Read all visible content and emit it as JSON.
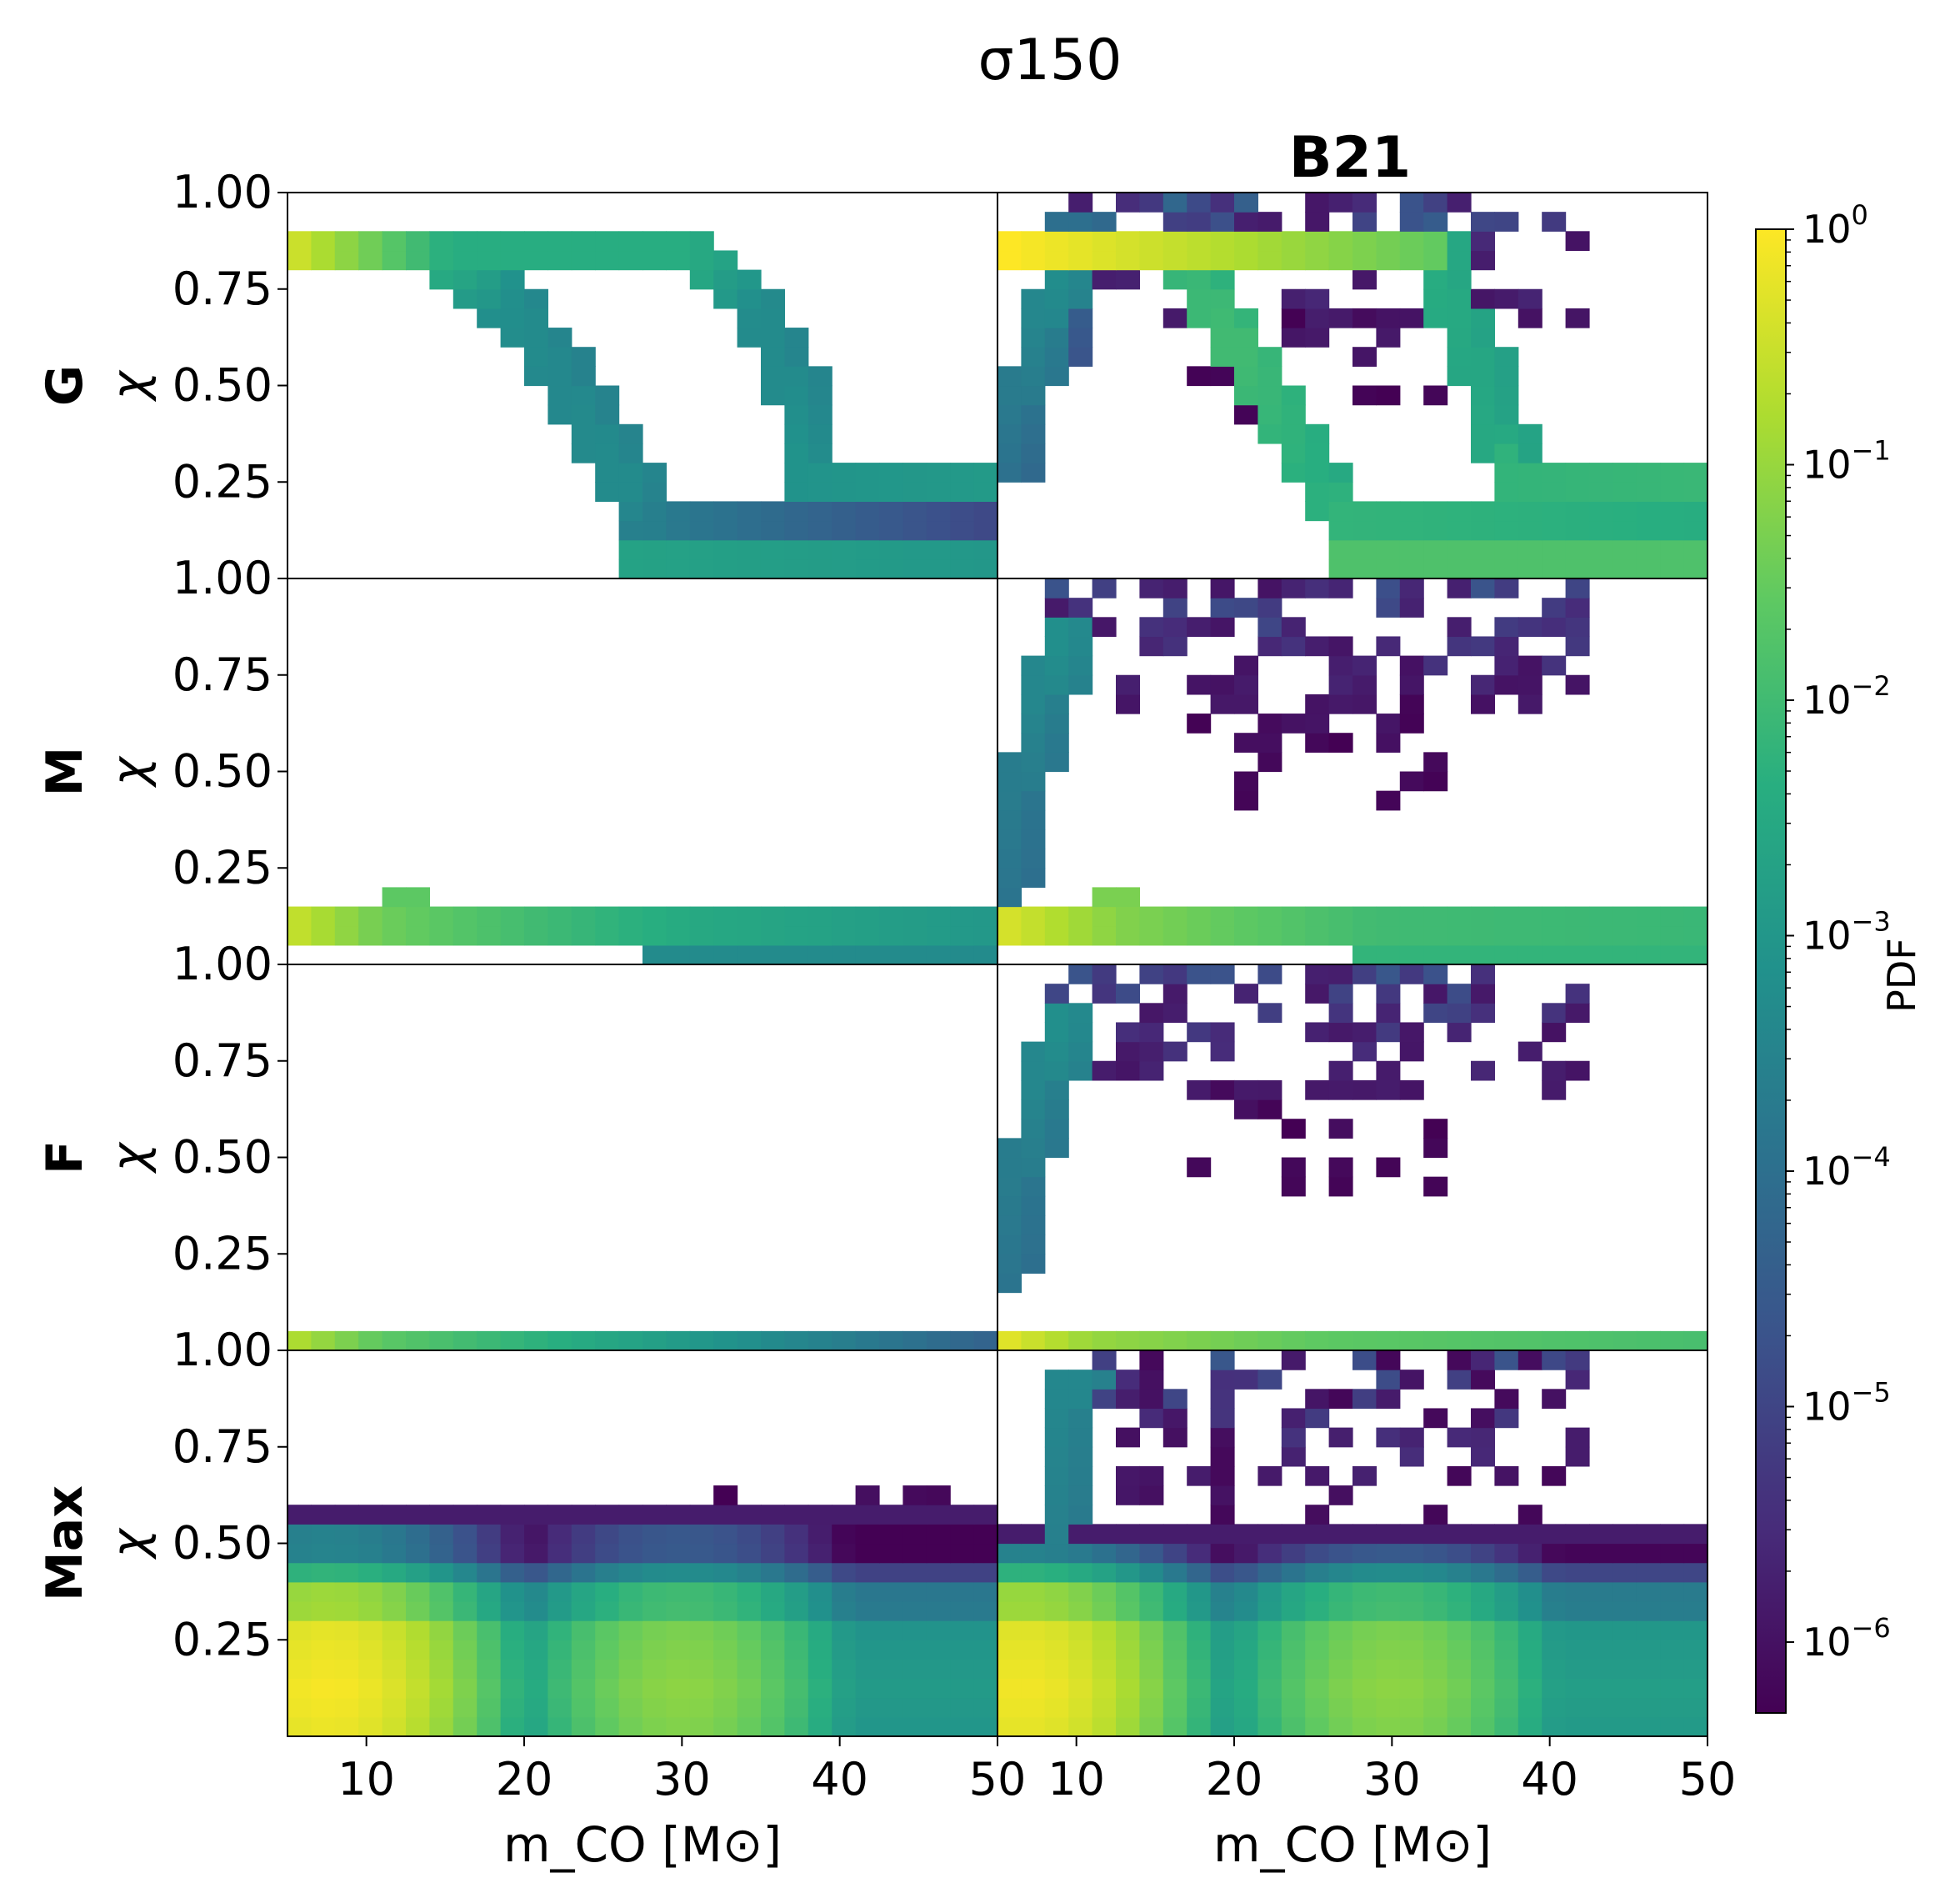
{
  "figure": {
    "title": "σ150",
    "column_titles": [
      "",
      "B21"
    ]
  },
  "colorbar": {
    "label": "PDF",
    "scale": "log",
    "range": [
      5e-07,
      1
    ],
    "ticks": [
      {
        "value": 1,
        "exp": "0"
      },
      {
        "value": 0.1,
        "exp": "−1"
      },
      {
        "value": 0.01,
        "exp": "−2"
      },
      {
        "value": 0.001,
        "exp": "−3"
      },
      {
        "value": 0.0001,
        "exp": "−4"
      },
      {
        "value": 1e-05,
        "exp": "−5"
      },
      {
        "value": 1e-06,
        "exp": "−6"
      }
    ]
  },
  "chart_data": {
    "type": "heatmap",
    "title": "σ150",
    "xlabel": "m_CO [M⊙]",
    "ylabel": "χ",
    "x_range": [
      5,
      50
    ],
    "y_range": [
      0,
      1
    ],
    "x_ticks": [
      "10",
      "20",
      "30",
      "40",
      "50"
    ],
    "y_ticks": [
      "0.25",
      "0.50",
      "0.75",
      "1.00"
    ],
    "bins": {
      "x": 30,
      "y": 20,
      "x_width": 1.5,
      "y_width": 0.05
    },
    "rows": [
      "G",
      "M",
      "F",
      "Max"
    ],
    "columns": [
      "",
      "B21"
    ],
    "value_scale": "log10 PDF",
    "panels": [
      {
        "row": "G",
        "col": "",
        "tracks": [
          {
            "pts": [
              [
                5,
                0.85
              ],
              [
                14,
                0.85
              ],
              [
                18,
                0.73
              ],
              [
                22,
                0.54
              ],
              [
                26,
                0.27
              ],
              [
                28,
                0.13
              ],
              [
                50,
                0.13
              ]
            ],
            "width": 0.05,
            "logv": [
              -0.5,
              -2.3,
              -3.2,
              -3.4,
              -3.3,
              -3.7,
              -5.0
            ]
          },
          {
            "pts": [
              [
                14,
                0.85
              ],
              [
                30,
                0.85
              ],
              [
                34,
                0.72
              ],
              [
                37,
                0.48
              ],
              [
                38,
                0.27
              ],
              [
                50,
                0.27
              ]
            ],
            "width": 0.05,
            "logv": [
              -2.4,
              -2.4,
              -3.3,
              -3.3,
              -3.1,
              -2.9
            ]
          },
          {
            "pts": [
              [
                27,
                0.03
              ],
              [
                50,
                0.03
              ]
            ],
            "width": 0.05,
            "logv": [
              -2.7,
              -3.0
            ]
          }
        ],
        "blobs": [],
        "mass": null
      },
      {
        "row": "G",
        "col": "B21",
        "tracks": [
          {
            "pts": [
              [
                5,
                0.85
              ],
              [
                20,
                0.85
              ],
              [
                33,
                0.85
              ]
            ],
            "width": 0.05,
            "logv": [
              0.0,
              -0.8,
              -1.6
            ]
          },
          {
            "pts": [
              [
                5,
                0.3
              ],
              [
                7,
                0.6
              ],
              [
                9,
                0.85
              ]
            ],
            "width": 0.05,
            "logv": [
              -4.0,
              -3.6,
              -3.2
            ]
          },
          {
            "pts": [
              [
                8,
                0.6
              ],
              [
                9.5,
                0.9
              ]
            ],
            "width": 0.05,
            "logv": [
              -4.5,
              -4.0
            ]
          },
          {
            "pts": [
              [
                16,
                0.85
              ],
              [
                20,
                0.6
              ],
              [
                25,
                0.25
              ],
              [
                27,
                0.13
              ],
              [
                50,
                0.13
              ]
            ],
            "width": 0.05,
            "logv": [
              -2.2,
              -2.0,
              -2.4,
              -2.2,
              -2.4
            ]
          },
          {
            "pts": [
              [
                32,
                0.85
              ],
              [
                35,
                0.55
              ],
              [
                37,
                0.3
              ],
              [
                38,
                0.27
              ],
              [
                50,
                0.27
              ]
            ],
            "width": 0.05,
            "logv": [
              -2.4,
              -2.6,
              -2.5,
              -2.2,
              -2.1
            ]
          },
          {
            "pts": [
              [
                27,
                0.03
              ],
              [
                50,
                0.03
              ]
            ],
            "width": 0.05,
            "logv": [
              -1.8,
              -1.8
            ]
          }
        ],
        "blobs": [
          {
            "x0": 8,
            "x1": 41,
            "y0": 0.65,
            "y1": 0.99,
            "decay": 0.6,
            "seed": 11,
            "logv": [
              -6.0,
              -4.2
            ]
          },
          {
            "x0": 17,
            "x1": 33,
            "y0": 0.4,
            "y1": 0.65,
            "decay": 0.4,
            "seed": 12,
            "logv": [
              -6.3,
              -5.7
            ]
          }
        ],
        "mass": null
      },
      {
        "row": "M",
        "col": "",
        "tracks": [
          {
            "pts": [
              [
                5,
                0.1
              ],
              [
                10,
                0.1
              ],
              [
                20,
                0.09
              ],
              [
                30,
                0.08
              ],
              [
                50,
                0.08
              ]
            ],
            "width": 0.05,
            "logv": [
              -0.6,
              -1.4,
              -2.0,
              -2.5,
              -3.0
            ]
          },
          {
            "pts": [
              [
                11,
                0.15
              ],
              [
                13,
                0.15
              ]
            ],
            "width": 0.05,
            "logv": [
              -1.6,
              -1.6
            ]
          },
          {
            "pts": [
              [
                28,
                0.03
              ],
              [
                50,
                0.03
              ]
            ],
            "width": 0.05,
            "logv": [
              -3.3,
              -3.3
            ]
          }
        ],
        "blobs": [],
        "mass": null
      },
      {
        "row": "M",
        "col": "B21",
        "tracks": [
          {
            "pts": [
              [
                5,
                0.1
              ],
              [
                12,
                0.1
              ],
              [
                28,
                0.1
              ],
              [
                50,
                0.08
              ]
            ],
            "width": 0.05,
            "logv": [
              -0.4,
              -1.2,
              -2.0,
              -2.1
            ]
          },
          {
            "pts": [
              [
                11,
                0.15
              ],
              [
                13,
                0.15
              ]
            ],
            "width": 0.05,
            "logv": [
              -1.3,
              -1.3
            ]
          },
          {
            "pts": [
              [
                28,
                0.03
              ],
              [
                50,
                0.03
              ]
            ],
            "width": 0.05,
            "logv": [
              -2.2,
              -2.2
            ]
          },
          {
            "pts": [
              [
                5,
                0.2
              ],
              [
                7,
                0.6
              ],
              [
                9,
                0.87
              ]
            ],
            "width": 0.05,
            "logv": [
              -3.9,
              -3.6,
              -3.2
            ]
          }
        ],
        "blobs": [
          {
            "x0": 8,
            "x1": 41,
            "y0": 0.65,
            "y1": 0.99,
            "decay": 0.6,
            "seed": 21,
            "logv": [
              -6.0,
              -4.5
            ]
          },
          {
            "x0": 17,
            "x1": 33,
            "y0": 0.4,
            "y1": 0.65,
            "decay": 0.4,
            "seed": 22,
            "logv": [
              -6.3,
              -5.8
            ]
          }
        ],
        "mass": null
      },
      {
        "row": "F",
        "col": "",
        "tracks": [
          {
            "pts": [
              [
                5,
                0.02
              ],
              [
                10,
                0.02
              ],
              [
                25,
                0.02
              ],
              [
                50,
                0.02
              ]
            ],
            "width": 0.05,
            "logv": [
              -0.8,
              -1.6,
              -2.6,
              -4.4
            ]
          }
        ],
        "blobs": [],
        "mass": null
      },
      {
        "row": "F",
        "col": "B21",
        "tracks": [
          {
            "pts": [
              [
                5,
                0.02
              ],
              [
                10,
                0.02
              ],
              [
                25,
                0.02
              ],
              [
                50,
                0.02
              ]
            ],
            "width": 0.05,
            "logv": [
              -0.3,
              -1.0,
              -1.6,
              -1.9
            ]
          },
          {
            "pts": [
              [
                5,
                0.2
              ],
              [
                7,
                0.6
              ],
              [
                9,
                0.87
              ]
            ],
            "width": 0.05,
            "logv": [
              -3.9,
              -3.6,
              -3.2
            ]
          }
        ],
        "blobs": [
          {
            "x0": 8,
            "x1": 41,
            "y0": 0.65,
            "y1": 0.99,
            "decay": 0.6,
            "seed": 31,
            "logv": [
              -6.0,
              -4.6
            ]
          },
          {
            "x0": 17,
            "x1": 33,
            "y0": 0.4,
            "y1": 0.65,
            "decay": 0.4,
            "seed": 32,
            "logv": [
              -6.3,
              -5.8
            ]
          }
        ],
        "mass": null
      },
      {
        "row": "Max",
        "col": "",
        "tracks": [],
        "blobs": [
          {
            "x0": 31,
            "x1": 47,
            "y0": 0.55,
            "y1": 0.62,
            "decay": 0.5,
            "seed": 41,
            "logv": [
              -6.3,
              -6.0
            ]
          }
        ],
        "mass": {
          "ymax": 0.6,
          "peaks": [
            [
              7.5,
              0.12,
              -0.05
            ],
            [
              30,
              0.15,
              -1.1
            ]
          ],
          "floor": -2.9,
          "xfall": 0.06,
          "yfall": [
            [
              0.3,
              -0.6
            ],
            [
              0.4,
              -1.8
            ],
            [
              0.45,
              -3.0
            ],
            [
              0.55,
              -5.8
            ]
          ]
        }
      },
      {
        "row": "Max",
        "col": "B21",
        "tracks": [
          {
            "pts": [
              [
                8,
                0.55
              ],
              [
                9.5,
                0.92
              ]
            ],
            "width": 0.05,
            "logv": [
              -3.6,
              -3.4
            ]
          }
        ],
        "blobs": [
          {
            "x0": 9,
            "x1": 41,
            "y0": 0.6,
            "y1": 0.99,
            "decay": 0.55,
            "seed": 51,
            "logv": [
              -6.2,
              -4.6
            ]
          }
        ],
        "mass": {
          "ymax": 0.55,
          "peaks": [
            [
              6.5,
              0.12,
              -0.1
            ],
            [
              30,
              0.15,
              -1.1
            ]
          ],
          "floor": -2.8,
          "xfall": 0.06,
          "yfall": [
            [
              0.3,
              -0.6
            ],
            [
              0.4,
              -1.8
            ],
            [
              0.45,
              -3.0
            ],
            [
              0.5,
              -5.8
            ]
          ]
        }
      }
    ]
  }
}
